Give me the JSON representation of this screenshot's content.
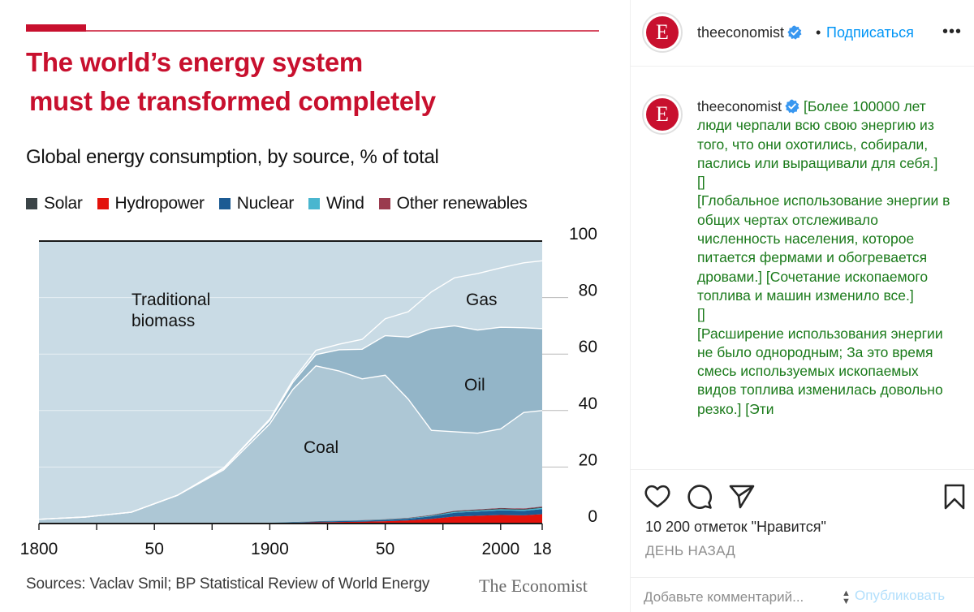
{
  "colors": {
    "headline": "#c8102e",
    "bg_light": "#c9dbe5",
    "coal": "#adc7d5",
    "oil": "#93b5c8",
    "gas": "#c9dbe5",
    "solar": "#3b4447",
    "hydropower": "#e3120b",
    "nuclear": "#1c5b93",
    "wind": "#4ab6cf",
    "other_renewables": "#9a3a4e",
    "follow": "#0095f6",
    "caption_green": "#1a7a1a"
  },
  "chart_data": {
    "type": "area",
    "headline": [
      "The world’s energy system",
      "must be transformed completely"
    ],
    "title": "Global energy consumption, by source, % of total",
    "legend": [
      "Solar",
      "Hydropower",
      "Nuclear",
      "Wind",
      "Other renewables"
    ],
    "x_ticks": [
      "1800",
      "50",
      "1900",
      "50",
      "2000",
      "18"
    ],
    "y_ticks": [
      "100",
      "80",
      "60",
      "40",
      "20",
      "0"
    ],
    "xlim": [
      1800,
      2018
    ],
    "ylim": [
      0,
      100
    ],
    "area_labels": [
      "Traditional",
      "biomass",
      "Coal",
      "Oil",
      "Gas"
    ],
    "x": [
      1800,
      1820,
      1840,
      1860,
      1880,
      1900,
      1910,
      1920,
      1930,
      1940,
      1950,
      1960,
      1970,
      1980,
      1990,
      2000,
      2010,
      2018
    ],
    "series": [
      {
        "name": "Renewables (solar, hydro, nuclear, wind, other)",
        "values": [
          0,
          0,
          0,
          0,
          0,
          0.3,
          0.5,
          0.8,
          1,
          1.2,
          1.5,
          2,
          3,
          4.5,
          5,
          5.5,
          5.3,
          6
        ]
      },
      {
        "name": "Coal",
        "values": [
          1.5,
          2.3,
          4,
          10,
          19,
          35,
          47,
          55,
          53,
          50,
          51,
          42,
          30,
          28,
          27,
          28,
          34,
          34
        ]
      },
      {
        "name": "Oil",
        "values": [
          0,
          0,
          0,
          0,
          0.5,
          1.2,
          2.5,
          4,
          7.5,
          10.5,
          14,
          22,
          36,
          37.5,
          36.5,
          36,
          30,
          29
        ]
      },
      {
        "name": "Gas",
        "values": [
          0,
          0,
          0,
          0,
          0.2,
          0.5,
          0.8,
          1.5,
          2,
          3.5,
          6,
          9,
          13,
          17,
          20,
          21,
          23,
          24
        ]
      },
      {
        "name": "Traditional biomass",
        "values": [
          98.5,
          97.7,
          96,
          90,
          80.3,
          63,
          49.2,
          38.7,
          36.5,
          34.8,
          27.5,
          25,
          18,
          13,
          11.5,
          9.5,
          7.7,
          7
        ]
      }
    ],
    "sources": "Sources: Vaclav Smil; BP Statistical Review of World Energy",
    "brand": "The Economist"
  },
  "post": {
    "username": "theeconomist",
    "header_dot": "•",
    "follow_label": "Подписаться",
    "more_label": "•••",
    "avatar_letter": "E",
    "caption": " [Более 100000 лет люди черпали всю свою энергию из того, что они охотились, собирали, паслись или выращивали для себя.]\n[]\n[Глобальное использование энергии в общих чертах отслеживало численность населения, которое питается фермами и обогревается дровами.] [Сочетание ископаемого топлива и машин изменило все.]\n[]\n[Расширение использования энергии не было однородным; За это время смесь используемых ископаемых видов топлива изменилась довольно резко.] [Эти",
    "likes": "10 200 отметок \"Нравится\"",
    "time": "ДЕНЬ НАЗАД",
    "comment_placeholder": "Добавьте комментарий...",
    "publish_label": "Опубликовать"
  }
}
